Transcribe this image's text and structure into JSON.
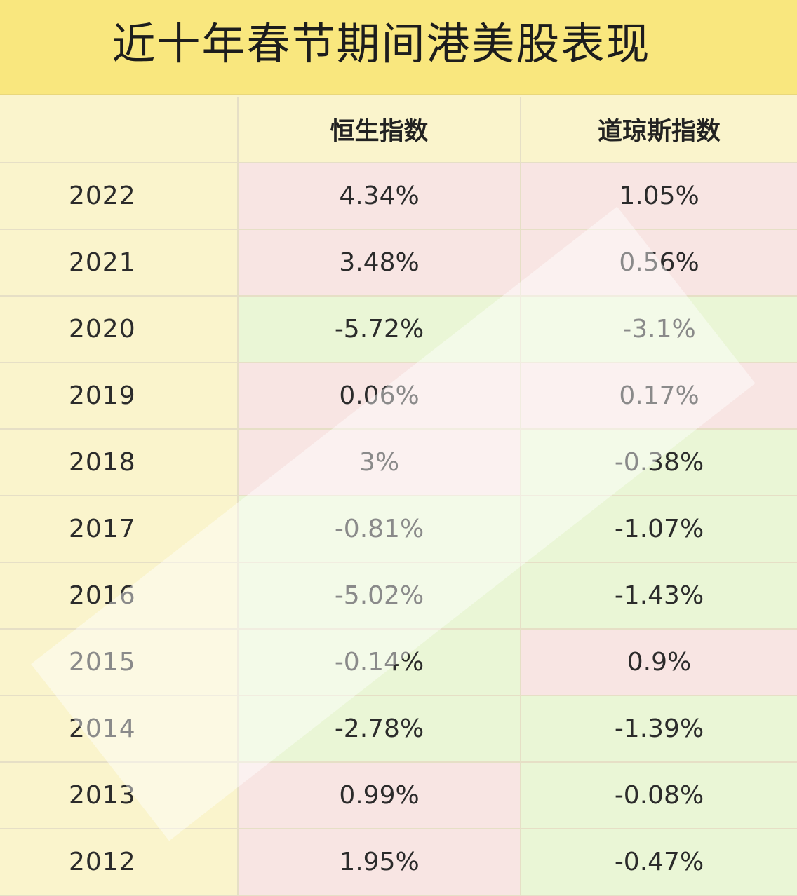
{
  "title": "近十年春节期间港美股表现",
  "chart_data": {
    "type": "table",
    "columns": [
      "",
      "恒生指数",
      "道琼斯指数"
    ],
    "rows": [
      {
        "year": "2022",
        "hsi": "4.34%",
        "dji": "1.05%"
      },
      {
        "year": "2021",
        "hsi": "3.48%",
        "dji": "0.56%"
      },
      {
        "year": "2020",
        "hsi": "-5.72%",
        "dji": "-3.1%"
      },
      {
        "year": "2019",
        "hsi": "0.06%",
        "dji": "0.17%"
      },
      {
        "year": "2018",
        "hsi": "3%",
        "dji": "-0.38%"
      },
      {
        "year": "2017",
        "hsi": "-0.81%",
        "dji": "-1.07%"
      },
      {
        "year": "2016",
        "hsi": "-5.02%",
        "dji": "-1.43%"
      },
      {
        "year": "2015",
        "hsi": "-0.14%",
        "dji": "0.9%"
      },
      {
        "year": "2014",
        "hsi": "-2.78%",
        "dji": "-1.39%"
      },
      {
        "year": "2013",
        "hsi": "0.99%",
        "dji": "-0.08%"
      },
      {
        "year": "2012",
        "hsi": "1.95%",
        "dji": "-0.47%"
      }
    ]
  },
  "colors": {
    "title_bg": "#f9e77e",
    "row_bg": "#faf4cc",
    "positive_bg": "#f8e5e3",
    "negative_bg": "#eaf6d6",
    "text": "#2b2b2b"
  }
}
